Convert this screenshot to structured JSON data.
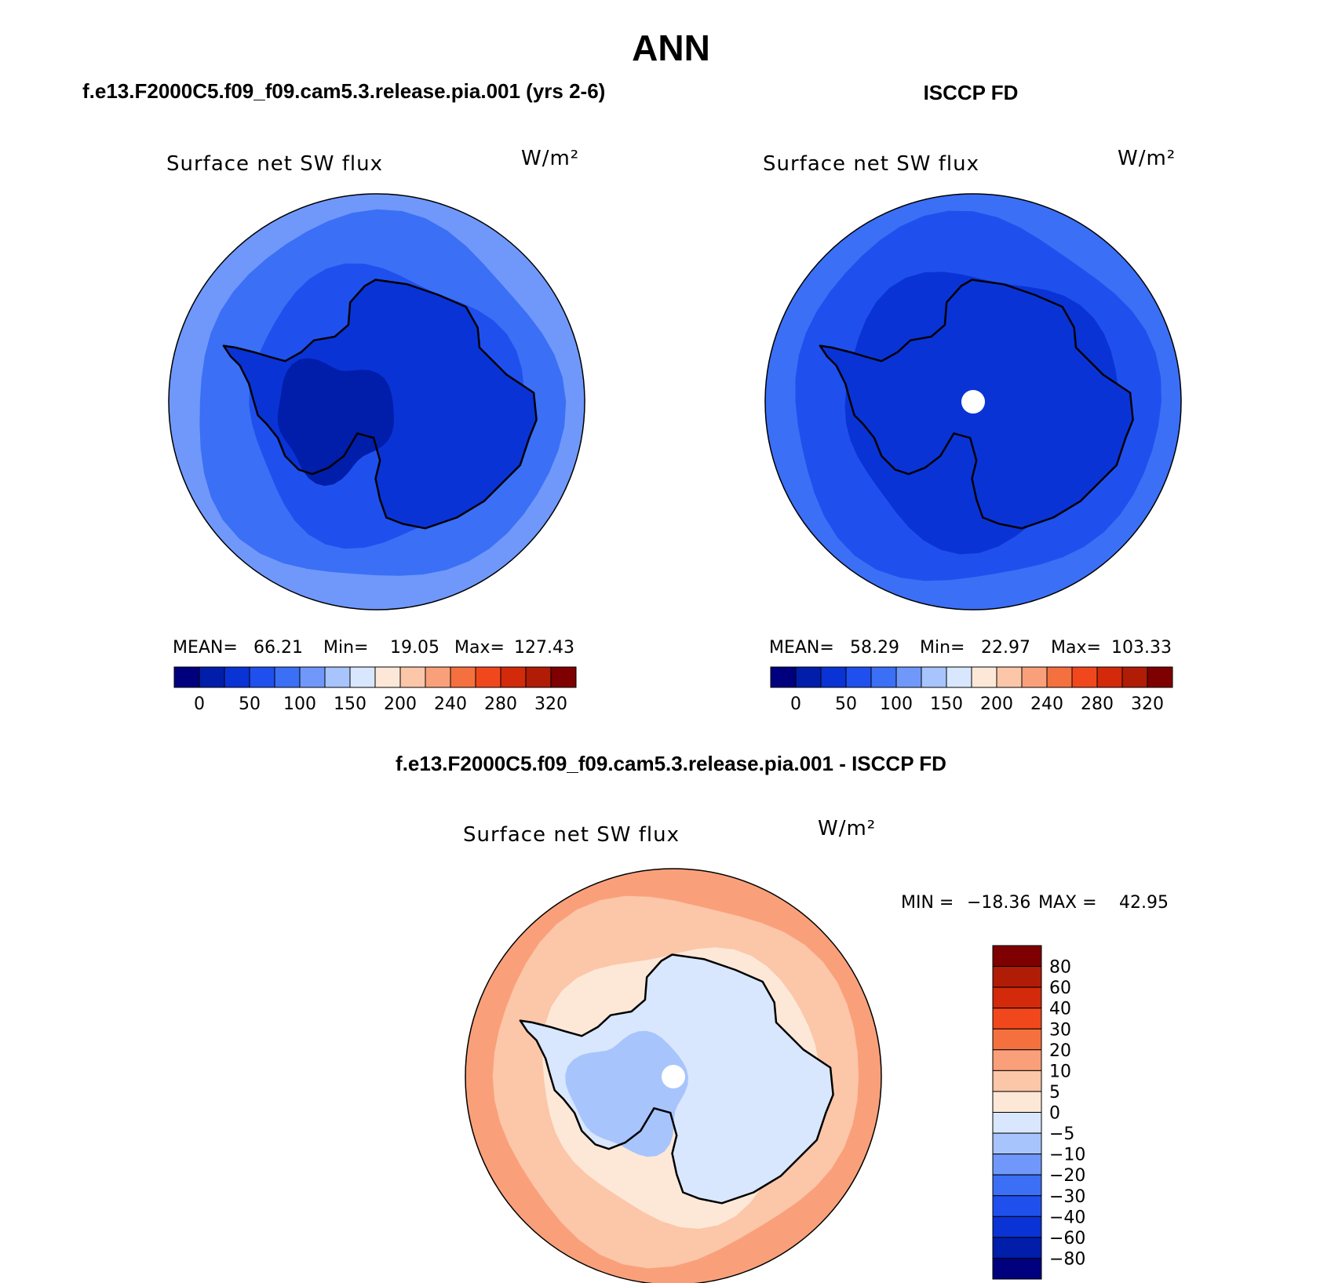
{
  "title": "ANN",
  "colors": {
    "main_scale": [
      "#00007f",
      "#001eaa",
      "#0a33d6",
      "#1f50ee",
      "#3b6ff5",
      "#6f98fa",
      "#a8c4fc",
      "#d8e7fd",
      "#fde8d8",
      "#fcc6a8",
      "#f9a07a",
      "#f4713f",
      "#f0481c",
      "#d22a0b",
      "#b01c06",
      "#7e0000"
    ],
    "diff_scale": [
      "#00007f",
      "#001eaa",
      "#0a33d6",
      "#1f50ee",
      "#3b6ff5",
      "#6f98fa",
      "#a8c4fc",
      "#d8e7fd",
      "#fde8d8",
      "#fcc6a8",
      "#f9a07a",
      "#f4713f",
      "#f0481c",
      "#d22a0b",
      "#b01c06",
      "#7e0000"
    ]
  },
  "panels": [
    {
      "id": "model",
      "header": "f.e13.F2000C5.f09_f09.cam5.3.release.pia.001 (yrs 2-6)",
      "field": "Surface net SW flux",
      "units": "W/m²",
      "stats": {
        "mean_label": "MEAN=",
        "mean": "66.21",
        "min_label": "Min=",
        "min": "19.05",
        "max_label": "Max=",
        "max": "127.43"
      },
      "ticks": [
        "0",
        "50",
        "100",
        "150",
        "200",
        "240",
        "280",
        "320"
      ],
      "pole_hole": false,
      "zones": [
        {
          "label": "open ocean (outer)",
          "band": 5
        },
        {
          "label": "mid ocean",
          "band": 4
        },
        {
          "label": "sea ice ring",
          "band": 3
        },
        {
          "label": "continent",
          "band": 2
        },
        {
          "label": "west antarctica interior",
          "band": 1
        }
      ]
    },
    {
      "id": "obs",
      "header": "ISCCP FD",
      "field": "Surface net SW flux",
      "units": "W/m²",
      "stats": {
        "mean_label": "MEAN=",
        "mean": "58.29",
        "min_label": "Min=",
        "min": "22.97",
        "max_label": "Max=",
        "max": "103.33"
      },
      "ticks": [
        "0",
        "50",
        "100",
        "150",
        "200",
        "240",
        "280",
        "320"
      ],
      "pole_hole": true,
      "zones": [
        {
          "label": "open ocean (outer)",
          "band": 4
        },
        {
          "label": "mid ocean",
          "band": 3
        },
        {
          "label": "sea ice ring",
          "band": 2
        },
        {
          "label": "continent",
          "band": 2
        }
      ]
    },
    {
      "id": "diff",
      "header": "f.e13.F2000C5.f09_f09.cam5.3.release.pia.001 - ISCCP FD",
      "field": "Surface net SW flux",
      "units": "W/m²",
      "minmax": {
        "min_label": "MIN =",
        "min": "−18.36",
        "max_label": "MAX =",
        "max": "42.95"
      },
      "ticks": [
        "80",
        "60",
        "40",
        "30",
        "20",
        "10",
        "5",
        "0",
        "−5",
        "−10",
        "−20",
        "−30",
        "−40",
        "−60",
        "−80"
      ],
      "pole_hole": true,
      "zones": [
        {
          "label": "open ocean (outer)",
          "band": 10
        },
        {
          "label": "mid ocean",
          "band": 9
        },
        {
          "label": "sea ice ring",
          "band": 8
        },
        {
          "label": "coastal continent",
          "band": 7
        },
        {
          "label": "east antarctic plateau",
          "band": 6
        }
      ]
    }
  ]
}
